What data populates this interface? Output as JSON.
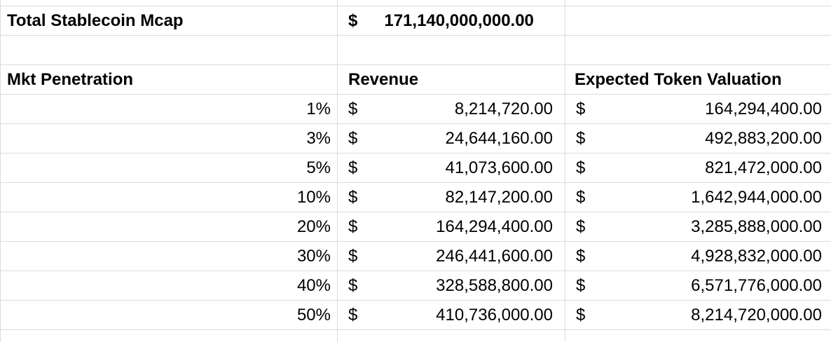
{
  "sheet": {
    "total": {
      "label": "Total Stablecoin Mcap",
      "currency": "$",
      "value": "171,140,000,000.00"
    },
    "headers": {
      "penetration": "Mkt Penetration",
      "revenue": "Revenue",
      "valuation": "Expected Token Valuation"
    },
    "currency_symbol": "$",
    "rows": [
      {
        "pct": "1%",
        "revenue": "8,214,720.00",
        "valuation": "164,294,400.00"
      },
      {
        "pct": "3%",
        "revenue": "24,644,160.00",
        "valuation": "492,883,200.00"
      },
      {
        "pct": "5%",
        "revenue": "41,073,600.00",
        "valuation": "821,472,000.00"
      },
      {
        "pct": "10%",
        "revenue": "82,147,200.00",
        "valuation": "1,642,944,000.00"
      },
      {
        "pct": "20%",
        "revenue": "164,294,400.00",
        "valuation": "3,285,888,000.00"
      },
      {
        "pct": "30%",
        "revenue": "246,441,600.00",
        "valuation": "4,928,832,000.00"
      },
      {
        "pct": "40%",
        "revenue": "328,588,800.00",
        "valuation": "6,571,776,000.00"
      },
      {
        "pct": "50%",
        "revenue": "410,736,000.00",
        "valuation": "8,214,720,000.00"
      }
    ]
  }
}
